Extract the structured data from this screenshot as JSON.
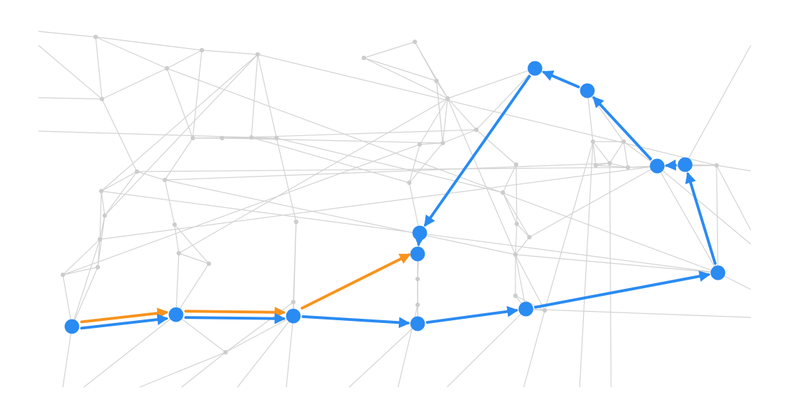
{
  "colors": {
    "background": "#ffffff",
    "edge": "#d2d2d2",
    "node": "#cccccc",
    "route_primary": "#2a8bf2",
    "route_secondary": "#f7931e"
  },
  "graph": {
    "node_count": 60,
    "seed": 7
  },
  "route_primary": {
    "name": "",
    "dashed_segments": [
      11
    ]
  },
  "route_secondary": {
    "name": ""
  }
}
